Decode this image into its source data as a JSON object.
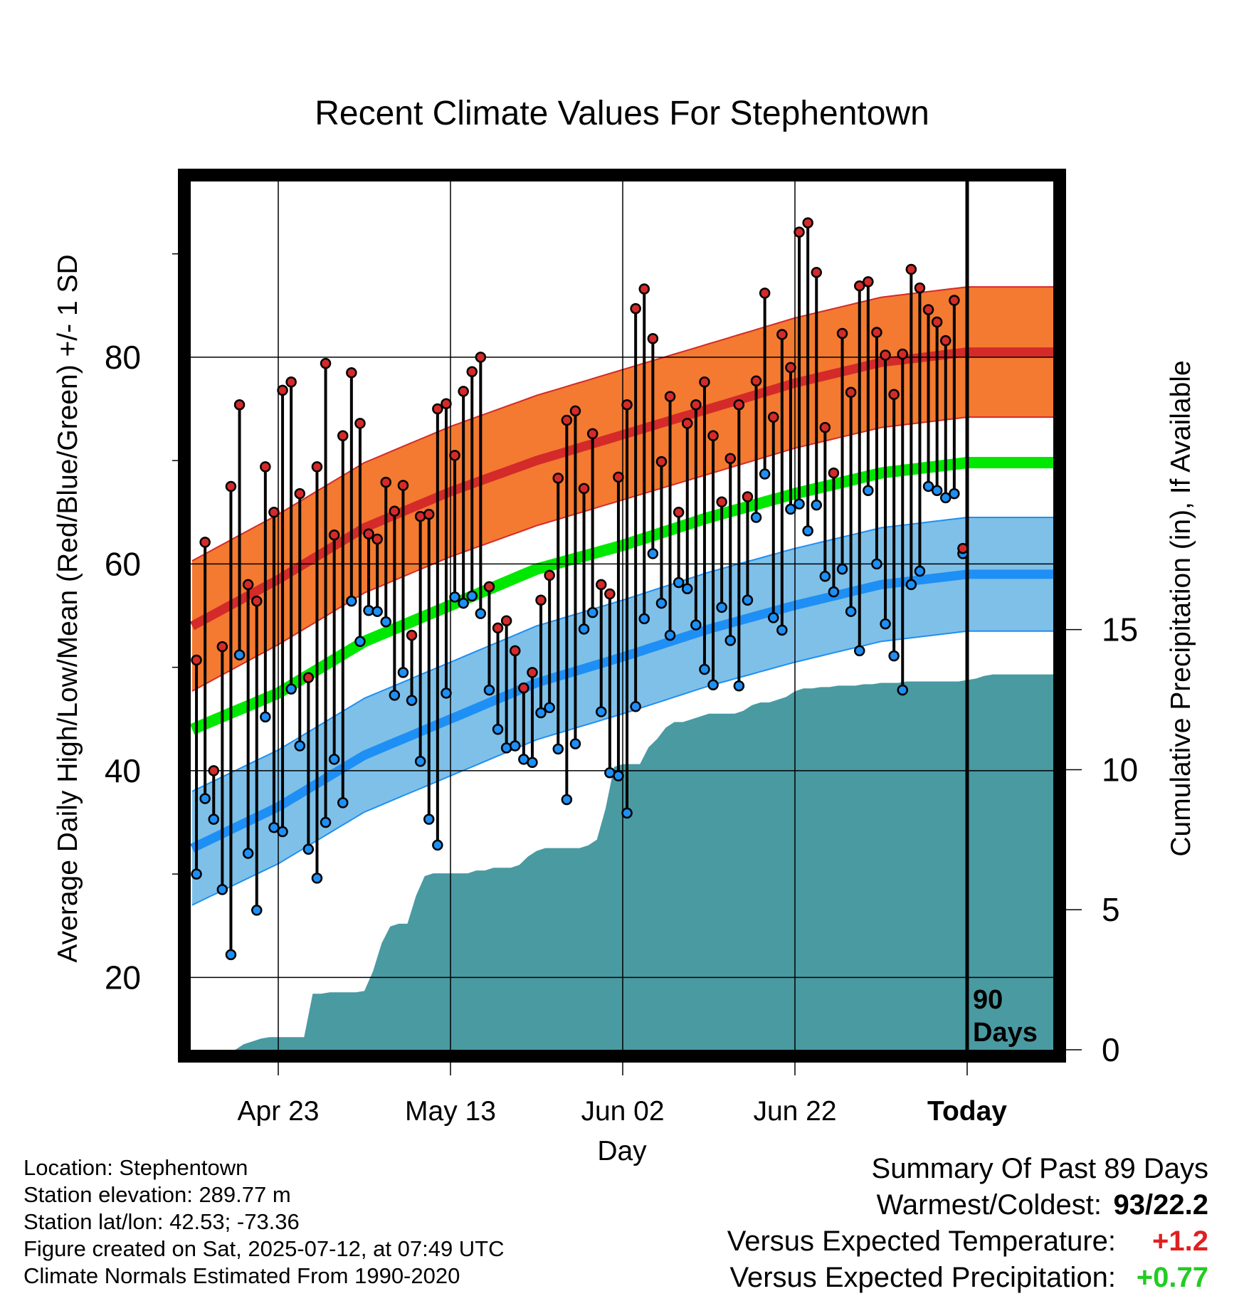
{
  "chart_data": {
    "type": "line",
    "title": "Recent Climate Values For Stephentown",
    "xlabel": "Day",
    "ylabel": "Average Daily High/Low/Mean (Red/Blue/Green) +/- 1 SD",
    "y2label": "Cumulative Precipitation (in), If Available",
    "x_ticks": [
      "Apr 23",
      "May 13",
      "Jun 02",
      "Jun 22",
      "Today"
    ],
    "x_tick_days": [
      10,
      30,
      50,
      70,
      90
    ],
    "x_range_days": [
      0,
      100
    ],
    "ylim": [
      13,
      97
    ],
    "yticks_major": [
      20,
      40,
      60,
      80
    ],
    "yticks_minor": [
      30,
      50,
      70,
      90
    ],
    "y2lim": [
      0,
      31
    ],
    "y2ticks": [
      0,
      5,
      10,
      15
    ],
    "today_marker_label": [
      "90",
      "Days"
    ],
    "colors": {
      "high": "#d42a2a",
      "high_band": "#f37a30",
      "low": "#1e8ff5",
      "low_band": "#7fc0e8",
      "mean": "#00e800",
      "precip": "#4a9aa2",
      "obs_line": "#000000"
    },
    "normals": {
      "days": [
        0,
        10,
        20,
        30,
        40,
        50,
        60,
        70,
        80,
        90,
        100
      ],
      "high_mean": [
        54,
        58.5,
        63.5,
        67,
        70,
        72.5,
        75,
        77.5,
        79.5,
        80.5,
        80.5
      ],
      "high_sd": 6.3,
      "mean": [
        44,
        47.5,
        52.5,
        56,
        59.5,
        61.8,
        64.5,
        66.8,
        68.8,
        69.8,
        69.8
      ],
      "low_mean": [
        32.5,
        36.5,
        41.5,
        45,
        48.5,
        51,
        53.7,
        56,
        58,
        59,
        59
      ],
      "low_sd": 5.5
    },
    "observed_days": [
      0,
      1,
      2,
      3,
      4,
      5,
      6,
      7,
      8,
      9,
      10,
      11,
      12,
      13,
      14,
      15,
      16,
      17,
      18,
      19,
      20,
      21,
      22,
      23,
      24,
      25,
      26,
      27,
      28,
      29,
      30,
      31,
      32,
      33,
      34,
      35,
      36,
      37,
      38,
      39,
      40,
      41,
      42,
      43,
      44,
      45,
      46,
      47,
      48,
      49,
      50,
      51,
      52,
      53,
      54,
      55,
      56,
      57,
      58,
      59,
      60,
      61,
      62,
      63,
      64,
      65,
      66,
      67,
      68,
      69,
      70,
      71,
      72,
      73,
      74,
      75,
      76,
      77,
      78,
      79,
      80,
      81,
      82,
      83,
      84,
      85,
      86,
      87,
      88,
      89
    ],
    "observed_high": [
      50.7,
      62.1,
      40.0,
      52.0,
      67.5,
      75.4,
      58.0,
      56.4,
      69.4,
      65.0,
      76.8,
      77.6,
      66.8,
      49.0,
      69.4,
      79.4,
      62.8,
      72.4,
      78.5,
      73.6,
      62.9,
      62.4,
      67.9,
      65.1,
      67.6,
      53.1,
      64.6,
      64.8,
      75.0,
      75.5,
      70.5,
      76.7,
      78.6,
      80.0,
      57.8,
      53.8,
      54.5,
      51.6,
      48.0,
      49.5,
      56.5,
      58.9,
      68.3,
      73.9,
      74.8,
      67.3,
      72.6,
      58.0,
      57.1,
      68.4,
      75.4,
      84.7,
      86.6,
      81.8,
      69.9,
      76.2,
      65.0,
      73.6,
      75.4,
      77.6,
      72.4,
      66.0,
      70.2,
      75.4,
      66.5,
      77.7,
      86.2,
      74.2,
      82.2,
      79.0,
      92.1,
      93.0,
      88.2,
      73.2,
      68.8,
      82.3,
      76.6,
      86.9,
      87.3,
      82.4,
      80.2,
      76.4,
      80.3,
      88.5,
      86.7,
      84.6,
      83.4,
      81.6,
      85.5,
      61.5
    ],
    "observed_low": [
      30.0,
      37.3,
      35.3,
      28.5,
      22.2,
      51.2,
      32.0,
      26.5,
      45.2,
      34.5,
      34.1,
      47.9,
      42.4,
      32.4,
      29.6,
      35.0,
      41.1,
      36.9,
      56.4,
      52.5,
      55.5,
      55.4,
      54.4,
      47.3,
      49.5,
      46.8,
      40.9,
      35.3,
      32.8,
      47.5,
      56.8,
      56.2,
      56.9,
      55.2,
      47.8,
      44.0,
      42.2,
      42.4,
      41.1,
      40.8,
      45.6,
      46.1,
      42.1,
      37.2,
      42.6,
      53.7,
      55.3,
      45.7,
      39.8,
      39.5,
      35.9,
      46.2,
      54.7,
      61.0,
      56.2,
      53.1,
      58.2,
      57.6,
      54.1,
      49.8,
      48.3,
      55.8,
      52.6,
      48.2,
      56.5,
      64.5,
      68.7,
      54.8,
      53.6,
      65.3,
      65.8,
      63.2,
      65.7,
      58.8,
      57.3,
      59.5,
      55.4,
      51.6,
      67.1,
      60.0,
      54.2,
      51.1,
      47.8,
      58.0,
      59.3,
      67.5,
      67.1,
      66.4,
      66.8,
      61.0
    ],
    "precip_cumulative": {
      "days": [
        0,
        5,
        6,
        7,
        8,
        9,
        10,
        11,
        12,
        13,
        14,
        15,
        16,
        17,
        18,
        19,
        20,
        21,
        22,
        23,
        24,
        25,
        26,
        27,
        28,
        29,
        30,
        31,
        32,
        33,
        34,
        35,
        36,
        37,
        38,
        39,
        40,
        41,
        42,
        43,
        44,
        45,
        46,
        47,
        48,
        49,
        50,
        51,
        52,
        53,
        54,
        55,
        56,
        57,
        58,
        59,
        60,
        61,
        62,
        63,
        64,
        65,
        66,
        67,
        68,
        69,
        70,
        71,
        72,
        73,
        74,
        75,
        76,
        77,
        78,
        79,
        80,
        81,
        82,
        83,
        84,
        85,
        86,
        87,
        88,
        89,
        90,
        91,
        92,
        93,
        94,
        95,
        96,
        97,
        98,
        99,
        100
      ],
      "values": [
        0,
        0,
        0.2,
        0.3,
        0.4,
        0.45,
        0.45,
        0.45,
        0.45,
        0.45,
        2.0,
        2.0,
        2.05,
        2.05,
        2.05,
        2.05,
        2.1,
        2.8,
        3.8,
        4.4,
        4.5,
        4.5,
        5.5,
        6.2,
        6.3,
        6.3,
        6.3,
        6.3,
        6.3,
        6.4,
        6.4,
        6.5,
        6.5,
        6.5,
        6.6,
        6.9,
        7.1,
        7.2,
        7.2,
        7.2,
        7.2,
        7.2,
        7.3,
        7.5,
        8.6,
        10.1,
        10.2,
        10.2,
        10.2,
        10.8,
        11.1,
        11.5,
        11.7,
        11.7,
        11.8,
        11.9,
        12.0,
        12.0,
        12.0,
        12.0,
        12.1,
        12.3,
        12.4,
        12.4,
        12.5,
        12.6,
        12.8,
        12.9,
        12.9,
        12.95,
        12.95,
        13.0,
        13.0,
        13.0,
        13.05,
        13.05,
        13.1,
        13.1,
        13.1,
        13.15,
        13.15,
        13.15,
        13.15,
        13.15,
        13.15,
        13.15,
        13.2,
        13.25,
        13.35,
        13.4,
        13.4,
        13.4,
        13.4,
        13.4,
        13.4,
        13.4,
        13.4
      ]
    }
  },
  "info": {
    "location": "Location: Stephentown",
    "elevation": "Station elevation: 289.77 m",
    "latlon": "Station lat/lon: 42.53; -73.36",
    "created": "Figure created on Sat, 2025-07-12, at 07:49 UTC",
    "normals": "Climate Normals Estimated From 1990-2020"
  },
  "summary": {
    "title": "Summary Of Past 89 Days",
    "warmest_label": "Warmest/Coldest:",
    "warmest_value": "93/22.2",
    "temp_label": "Versus Expected Temperature:",
    "temp_value": "+1.2",
    "temp_color": "#e02020",
    "precip_label": "Versus Expected Precipitation:",
    "precip_value": "+0.77",
    "precip_color": "#22cc22"
  }
}
